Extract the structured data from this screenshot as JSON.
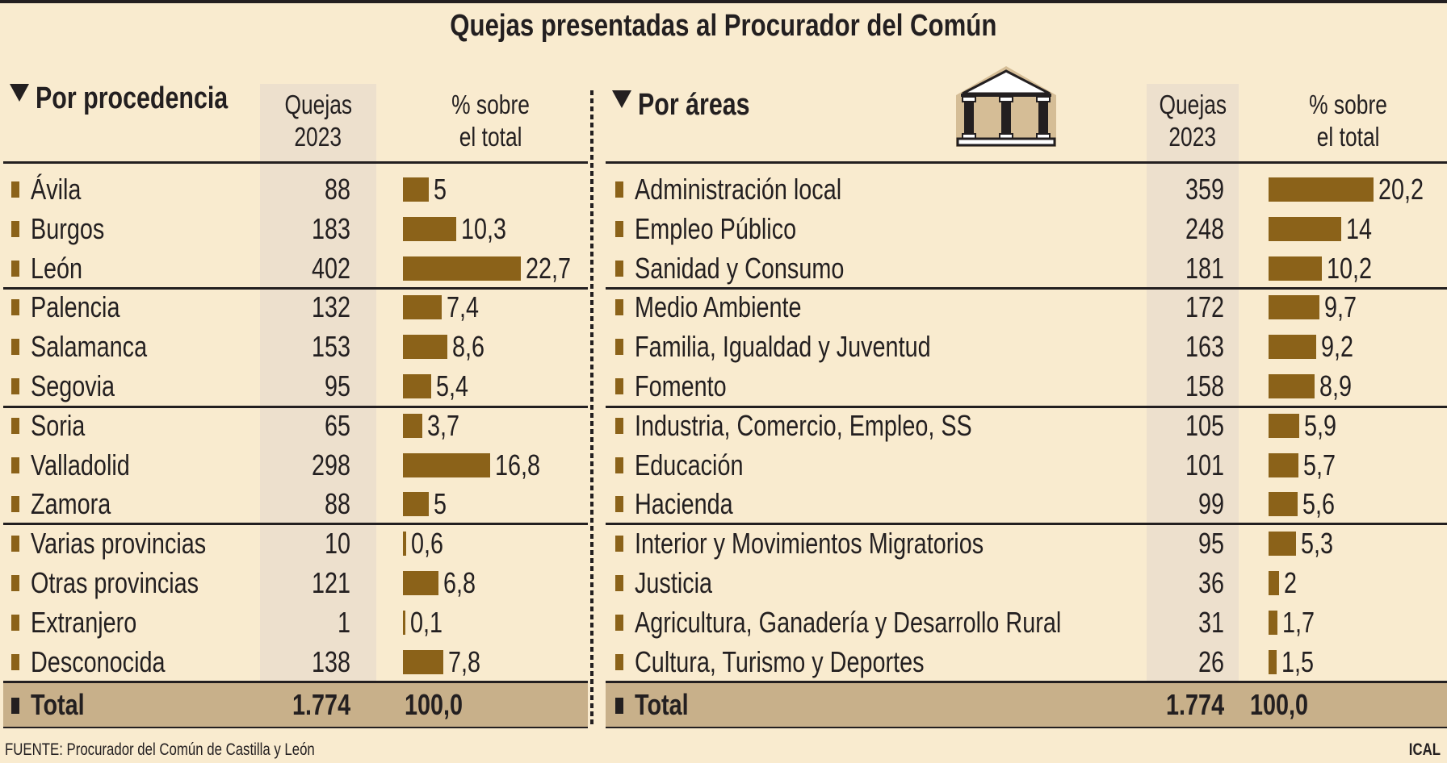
{
  "title": "Quejas presentadas al Procurador del Común",
  "left": {
    "heading": "Por procedencia",
    "col_quejas": [
      "Quejas",
      "2023"
    ],
    "col_pct": [
      "% sobre",
      "el total"
    ],
    "rows": [
      {
        "label": "Ávila",
        "quejas": "88",
        "pct": "5",
        "value": 5
      },
      {
        "label": "Burgos",
        "quejas": "183",
        "pct": "10,3",
        "value": 10.3
      },
      {
        "label": "León",
        "quejas": "402",
        "pct": "22,7",
        "value": 22.7
      },
      {
        "label": "Palencia",
        "quejas": "132",
        "pct": "7,4",
        "value": 7.4
      },
      {
        "label": "Salamanca",
        "quejas": "153",
        "pct": "8,6",
        "value": 8.6
      },
      {
        "label": "Segovia",
        "quejas": "95",
        "pct": "5,4",
        "value": 5.4
      },
      {
        "label": "Soria",
        "quejas": "65",
        "pct": "3,7",
        "value": 3.7
      },
      {
        "label": "Valladolid",
        "quejas": "298",
        "pct": "16,8",
        "value": 16.8
      },
      {
        "label": "Zamora",
        "quejas": "88",
        "pct": "5",
        "value": 5
      },
      {
        "label": "Varias provincias",
        "quejas": "10",
        "pct": "0,6",
        "value": 0.6
      },
      {
        "label": "Otras provincias",
        "quejas": "121",
        "pct": "6,8",
        "value": 6.8
      },
      {
        "label": "Extranjero",
        "quejas": "1",
        "pct": "0,1",
        "value": 0.1
      },
      {
        "label": "Desconocida",
        "quejas": "138",
        "pct": "7,8",
        "value": 7.8
      }
    ],
    "total": {
      "label": "Total",
      "quejas": "1.774",
      "pct": "100,0"
    }
  },
  "right": {
    "heading": "Por áreas",
    "col_quejas": [
      "Quejas",
      "2023"
    ],
    "col_pct": [
      "% sobre",
      "el total"
    ],
    "icon": "temple-icon",
    "rows": [
      {
        "label": "Administración local",
        "quejas": "359",
        "pct": "20,2",
        "value": 20.2
      },
      {
        "label": "Empleo Público",
        "quejas": "248",
        "pct": "14",
        "value": 14
      },
      {
        "label": "Sanidad y Consumo",
        "quejas": "181",
        "pct": "10,2",
        "value": 10.2
      },
      {
        "label": "Medio Ambiente",
        "quejas": "172",
        "pct": "9,7",
        "value": 9.7
      },
      {
        "label": "Familia, Igualdad y Juventud",
        "quejas": "163",
        "pct": "9,2",
        "value": 9.2
      },
      {
        "label": "Fomento",
        "quejas": "158",
        "pct": "8,9",
        "value": 8.9
      },
      {
        "label": "Industria, Comercio, Empleo, SS",
        "quejas": "105",
        "pct": "5,9",
        "value": 5.9
      },
      {
        "label": "Educación",
        "quejas": "101",
        "pct": "5,7",
        "value": 5.7
      },
      {
        "label": "Hacienda",
        "quejas": "99",
        "pct": "5,6",
        "value": 5.6
      },
      {
        "label": "Interior y Movimientos Migratorios",
        "quejas": "95",
        "pct": "5,3",
        "value": 5.3
      },
      {
        "label": "Justicia",
        "quejas": "36",
        "pct": "2",
        "value": 2
      },
      {
        "label": "Agricultura, Ganadería y Desarrollo Rural",
        "quejas": "31",
        "pct": "1,7",
        "value": 1.7
      },
      {
        "label": "Cultura, Turismo y Deportes",
        "quejas": "26",
        "pct": "1,5",
        "value": 1.5
      }
    ],
    "total": {
      "label": "Total",
      "quejas": "1.774",
      "pct": "100,0"
    }
  },
  "footer": {
    "source": "FUENTE: Procurador del Común de Castilla y León",
    "credit": "ICAL"
  },
  "colors": {
    "background": "#f9ebcf",
    "bar": "#8b6219",
    "shade_column": "#ede0cd",
    "total_row": "#c8b08a",
    "text": "#231f20"
  },
  "chart_data": [
    {
      "type": "bar",
      "title": "Quejas presentadas al Procurador del Común — Por procedencia",
      "categories": [
        "Ávila",
        "Burgos",
        "León",
        "Palencia",
        "Salamanca",
        "Segovia",
        "Soria",
        "Valladolid",
        "Zamora",
        "Varias provincias",
        "Otras provincias",
        "Extranjero",
        "Desconocida"
      ],
      "series": [
        {
          "name": "Quejas 2023",
          "values": [
            88,
            183,
            402,
            132,
            153,
            95,
            65,
            298,
            88,
            10,
            121,
            1,
            138
          ]
        },
        {
          "name": "% sobre el total",
          "values": [
            5,
            10.3,
            22.7,
            7.4,
            8.6,
            5.4,
            3.7,
            16.8,
            5,
            0.6,
            6.8,
            0.1,
            7.8
          ]
        }
      ],
      "total": {
        "quejas": 1774,
        "pct": 100.0
      },
      "orientation": "horizontal"
    },
    {
      "type": "bar",
      "title": "Quejas presentadas al Procurador del Común — Por áreas",
      "categories": [
        "Administración local",
        "Empleo Público",
        "Sanidad y Consumo",
        "Medio Ambiente",
        "Familia, Igualdad y Juventud",
        "Fomento",
        "Industria, Comercio, Empleo, SS",
        "Educación",
        "Hacienda",
        "Interior y Movimientos Migratorios",
        "Justicia",
        "Agricultura, Ganadería y Desarrollo Rural",
        "Cultura, Turismo y Deportes"
      ],
      "series": [
        {
          "name": "Quejas 2023",
          "values": [
            359,
            248,
            181,
            172,
            163,
            158,
            105,
            101,
            99,
            95,
            36,
            31,
            26
          ]
        },
        {
          "name": "% sobre el total",
          "values": [
            20.2,
            14,
            10.2,
            9.7,
            9.2,
            8.9,
            5.9,
            5.7,
            5.6,
            5.3,
            2,
            1.7,
            1.5
          ]
        }
      ],
      "total": {
        "quejas": 1774,
        "pct": 100.0
      },
      "orientation": "horizontal"
    }
  ]
}
